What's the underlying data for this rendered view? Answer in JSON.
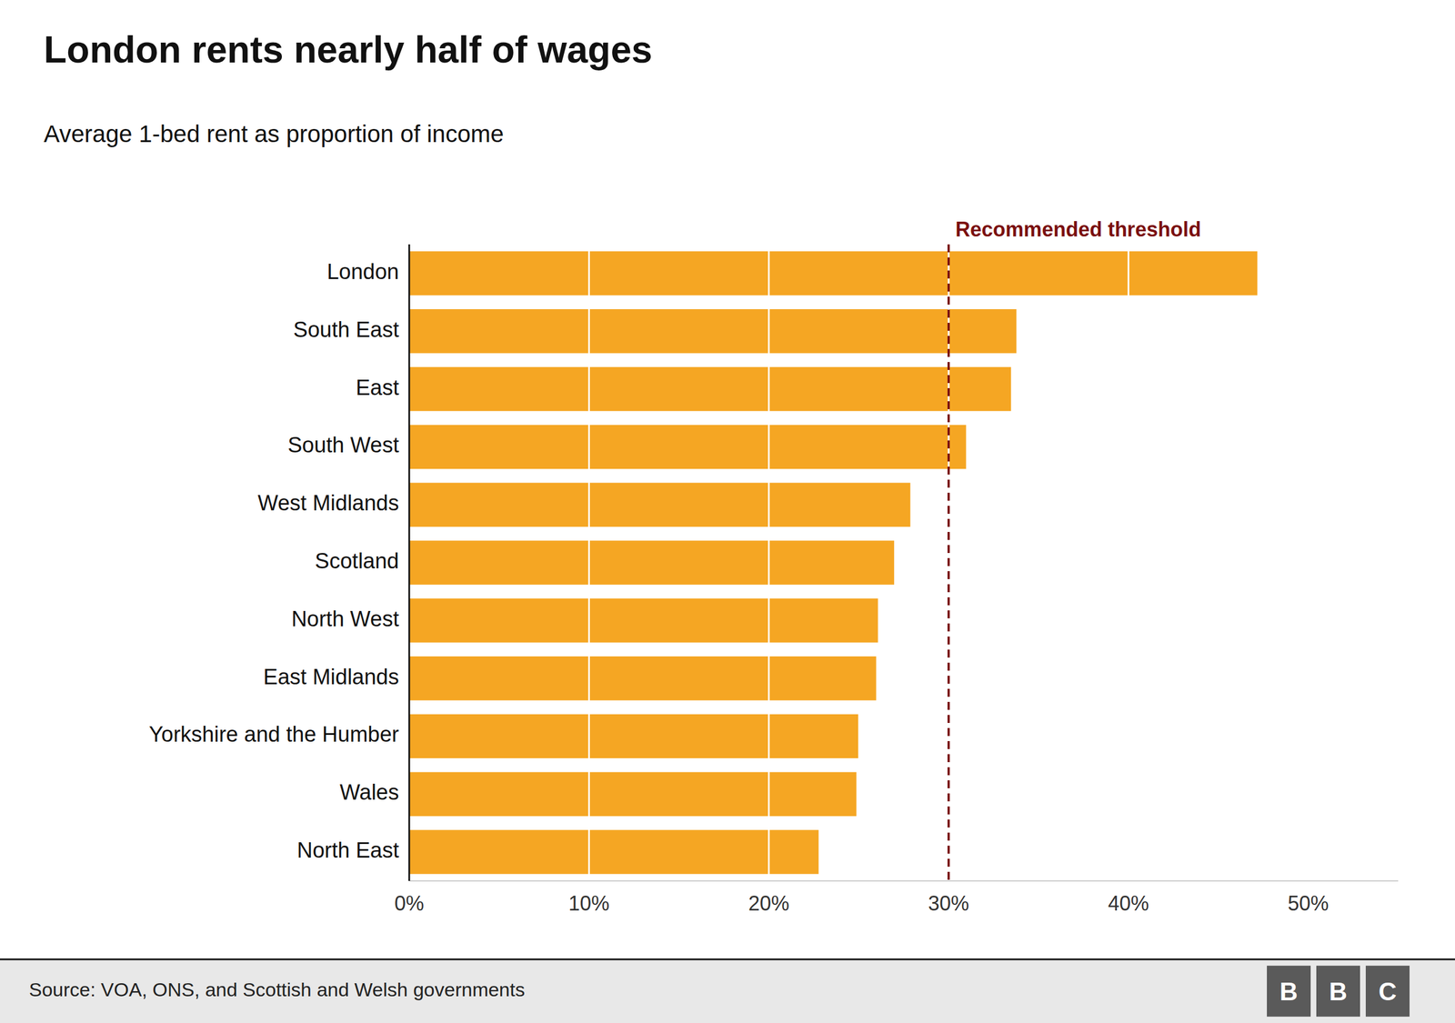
{
  "chart_data": {
    "type": "bar",
    "orientation": "horizontal",
    "title": "London rents nearly half of wages",
    "subtitle": "Average 1-bed rent as proportion of income",
    "categories": [
      "London",
      "South East",
      "East",
      "South West",
      "West Midlands",
      "Scotland",
      "North West",
      "East Midlands",
      "Yorkshire and the Humber",
      "Wales",
      "North East"
    ],
    "values": [
      0.472,
      0.338,
      0.335,
      0.31,
      0.279,
      0.27,
      0.261,
      0.26,
      0.25,
      0.249,
      0.228
    ],
    "color": "#f5a623",
    "xlim": [
      0,
      0.55
    ],
    "xticks": [
      {
        "value": 0.0,
        "label": "0%"
      },
      {
        "value": 0.1,
        "label": "10%"
      },
      {
        "value": 0.2,
        "label": "20%"
      },
      {
        "value": 0.3,
        "label": "30%"
      },
      {
        "value": 0.4,
        "label": "40%"
      },
      {
        "value": 0.5,
        "label": "50%"
      }
    ],
    "grid": true,
    "annotations": [
      {
        "label": "Recommended threshold",
        "value": 0.3,
        "color": "#7b1010"
      }
    ],
    "source": "Source: VOA, ONS, and Scottish and Welsh governments",
    "logo": [
      "B",
      "B",
      "C"
    ]
  }
}
